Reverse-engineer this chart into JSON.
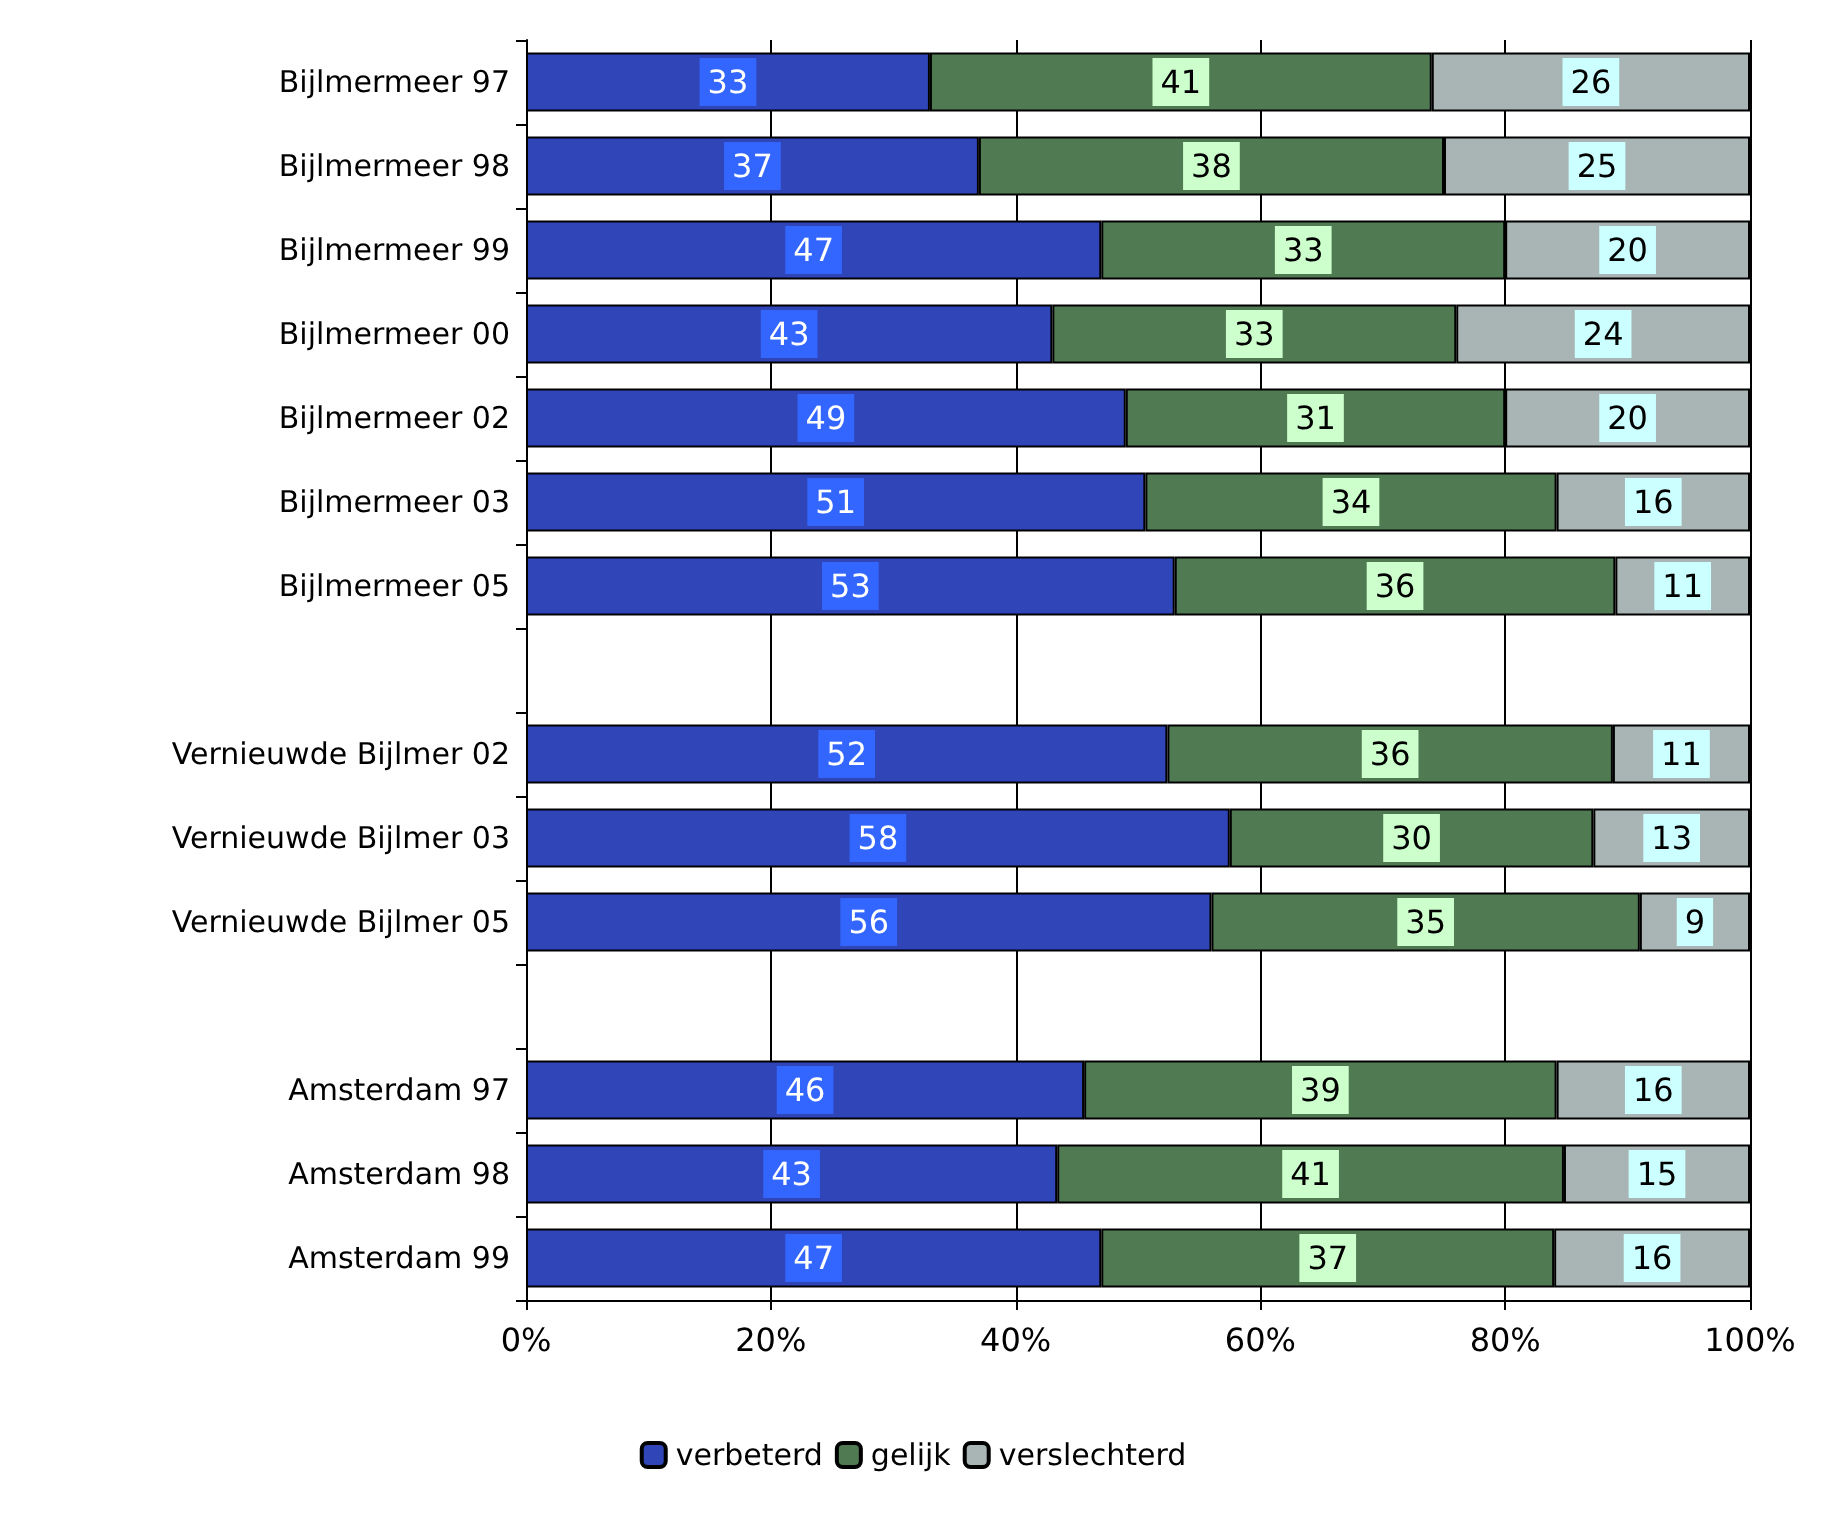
{
  "chart_data": {
    "type": "bar",
    "orientation": "horizontal",
    "stacked": true,
    "grid": "x",
    "legend": "bottom",
    "categories": [
      "Bijlmermeer 97",
      "Bijlmermeer 98",
      "Bijlmermeer 99",
      "Bijlmermeer 00",
      "Bijlmermeer 02",
      "Bijlmermeer 03",
      "Bijlmermeer 05",
      null,
      "Vernieuwde Bijlmer 02",
      "Vernieuwde Bijlmer 03",
      "Vernieuwde Bijlmer 05",
      null,
      "Amsterdam 97",
      "Amsterdam 98",
      "Amsterdam 99"
    ],
    "series": [
      {
        "name": "verbeterd",
        "color": "#2f45b8",
        "values": [
          33,
          37,
          47,
          43,
          49,
          50.6,
          53,
          null,
          52.4,
          57.5,
          56,
          null,
          45.6,
          43.4,
          47
        ],
        "value_labels": [
          "33",
          "37",
          "47",
          "43",
          "49",
          "51",
          "53",
          null,
          "52",
          "58",
          "56",
          null,
          "46",
          "43",
          "47"
        ]
      },
      {
        "name": "gelijk",
        "color": "#4f7a52",
        "values": [
          41,
          38,
          33,
          33,
          31,
          33.6,
          36,
          null,
          36.4,
          29.7,
          35,
          null,
          38.6,
          41.4,
          37
        ],
        "value_labels": [
          "41",
          "38",
          "33",
          "33",
          "31",
          "34",
          "36",
          null,
          "36",
          "30",
          "35",
          null,
          "39",
          "41",
          "37"
        ]
      },
      {
        "name": "verslechterd",
        "color": "#a9b4b4",
        "values": [
          26,
          25,
          20,
          24,
          20,
          15.8,
          11,
          null,
          11.2,
          12.8,
          9,
          null,
          15.8,
          15.2,
          16
        ],
        "value_labels": [
          "26",
          "25",
          "20",
          "24",
          "20",
          "16",
          "11",
          null,
          "11",
          "13",
          "9",
          null,
          "16",
          "15",
          "16"
        ]
      }
    ],
    "xlim": [
      0,
      100
    ],
    "xticks": [
      {
        "value": 0,
        "label": "0%"
      },
      {
        "value": 20,
        "label": "20%"
      },
      {
        "value": 40,
        "label": "40%"
      },
      {
        "value": 60,
        "label": "60%"
      },
      {
        "value": 80,
        "label": "80%"
      },
      {
        "value": 100,
        "label": "100%"
      }
    ]
  }
}
